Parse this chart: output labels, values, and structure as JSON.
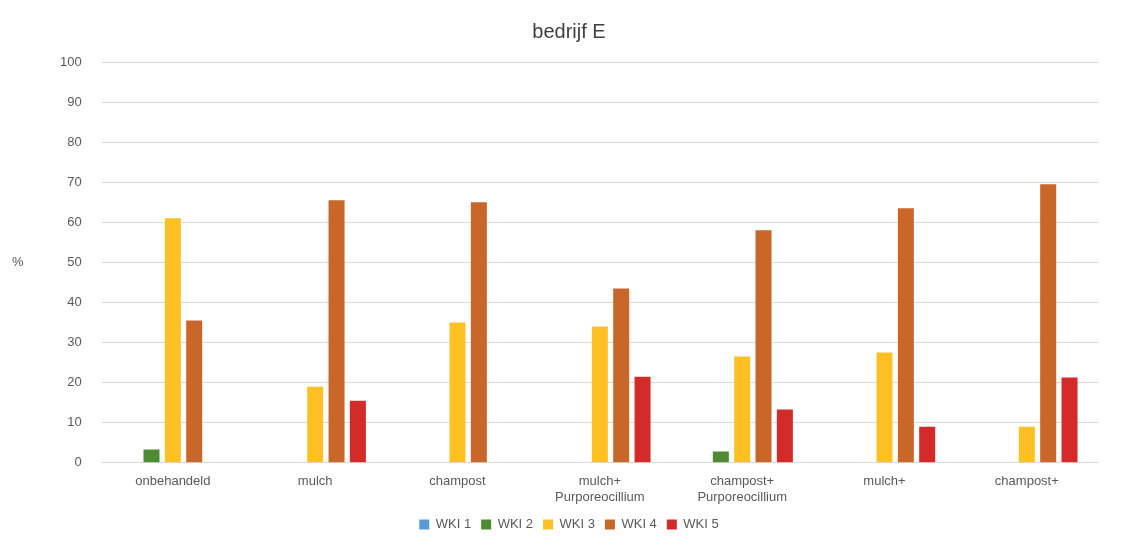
{
  "chart_data": {
    "type": "bar",
    "title": "bedrijf E",
    "ylabel": "%",
    "categories": [
      "onbehandeld",
      "mulch",
      "champost",
      "mulch+ Purporeocillium",
      "champost+ Purporeocillium",
      "mulch+",
      "champost+"
    ],
    "series": [
      {
        "name": "WKI 1",
        "color": "#5b9bd5",
        "values": [
          0,
          0,
          0,
          0,
          0,
          0,
          0
        ]
      },
      {
        "name": "WKI 2",
        "color": "#4f8a35",
        "values": [
          3.3,
          0,
          0,
          0,
          2.8,
          0,
          0
        ]
      },
      {
        "name": "WKI 3",
        "color": "#ffc024",
        "values": [
          61,
          19,
          35,
          34,
          26.5,
          27.5,
          9
        ]
      },
      {
        "name": "WKI 4",
        "color": "#c9662a",
        "values": [
          35.5,
          65.5,
          65,
          43.5,
          58,
          63.5,
          69.5
        ]
      },
      {
        "name": "WKI 5",
        "color": "#d42a2a",
        "values": [
          0,
          15.5,
          0,
          21.5,
          13.3,
          9,
          21.3
        ]
      }
    ],
    "ylim": [
      0,
      100
    ],
    "yticks": [
      0,
      10,
      20,
      30,
      40,
      50,
      60,
      70,
      80,
      90,
      100
    ],
    "grid": "y",
    "legend": "bottom"
  }
}
